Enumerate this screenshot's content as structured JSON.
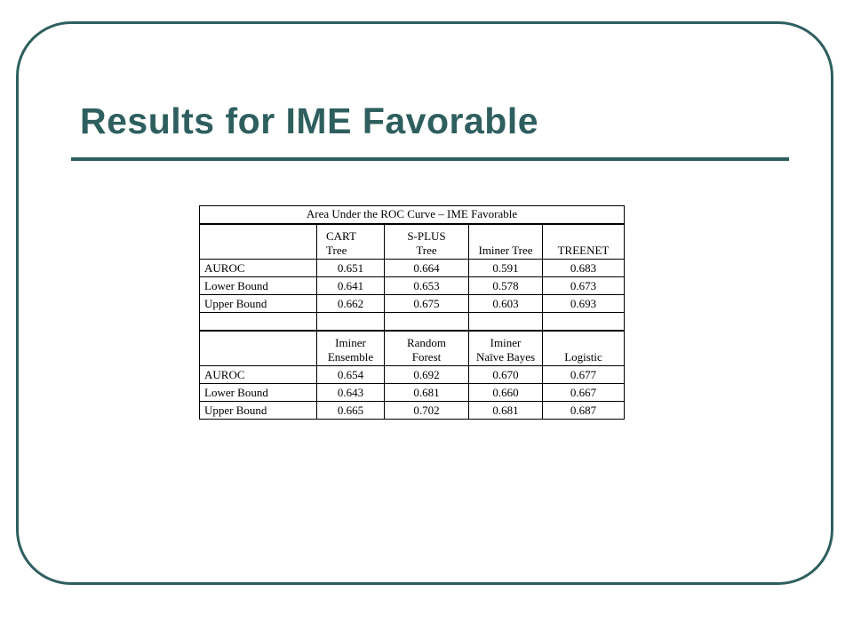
{
  "slide": {
    "title": "Results for IME Favorable"
  },
  "table": {
    "caption": "Area Under the ROC Curve – IME Favorable",
    "section1": {
      "headers": [
        {
          "line1": "CART",
          "line2": "Tree"
        },
        {
          "line1": "S-PLUS",
          "line2": "Tree"
        },
        {
          "line1": "",
          "line2": "Iminer Tree"
        },
        {
          "line1": "",
          "line2": "TREENET"
        }
      ],
      "rows": [
        {
          "label": "AUROC",
          "values": [
            "0.651",
            "0.664",
            "0.591",
            "0.683"
          ]
        },
        {
          "label": "Lower Bound",
          "values": [
            "0.641",
            "0.653",
            "0.578",
            "0.673"
          ]
        },
        {
          "label": "Upper Bound",
          "values": [
            "0.662",
            "0.675",
            "0.603",
            "0.693"
          ]
        }
      ]
    },
    "section2": {
      "headers": [
        {
          "line1": "Iminer",
          "line2": "Ensemble"
        },
        {
          "line1": "Random",
          "line2": "Forest"
        },
        {
          "line1": "Iminer",
          "line2": "Naïve Bayes"
        },
        {
          "line1": "",
          "line2": "Logistic"
        }
      ],
      "rows": [
        {
          "label": "AUROC",
          "values": [
            "0.654",
            "0.692",
            "0.670",
            "0.677"
          ]
        },
        {
          "label": "Lower Bound",
          "values": [
            "0.643",
            "0.681",
            "0.660",
            "0.667"
          ]
        },
        {
          "label": "Upper Bound",
          "values": [
            "0.665",
            "0.702",
            "0.681",
            "0.687"
          ]
        }
      ]
    }
  },
  "colors": {
    "accent": "#2e5f5e",
    "table_text": "#000000",
    "background": "#ffffff"
  }
}
